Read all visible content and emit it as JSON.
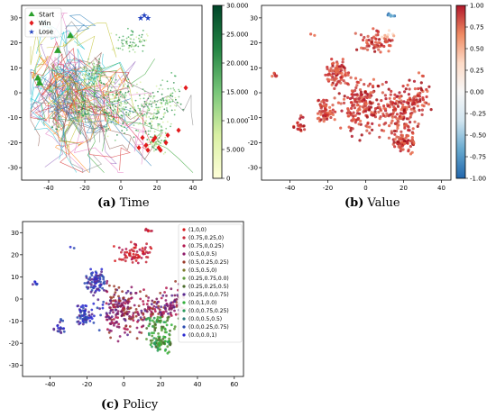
{
  "chart_data": [
    {
      "id": "a",
      "type": "scatter",
      "caption_tag": "(a)",
      "caption_text": "Time",
      "xlim": [
        -55,
        45
      ],
      "ylim": [
        -35,
        35
      ],
      "xticks": [
        "-40",
        "-20",
        "0",
        "20",
        "40"
      ],
      "yticks": [
        "-30",
        "-20",
        "-10",
        "0",
        "10",
        "20",
        "30"
      ],
      "legend": [
        {
          "label": "Start",
          "marker": "triangle",
          "color": "#2ca02c"
        },
        {
          "label": "Win",
          "marker": "diamond",
          "color": "#e31a1c"
        },
        {
          "label": "Lose",
          "marker": "star",
          "color": "#1f3fbf"
        }
      ],
      "colorbar": {
        "ticks": [
          "30.000",
          "25.000",
          "20.000",
          "15.000",
          "10.000",
          "5.000",
          "0"
        ],
        "range": [
          0,
          30
        ],
        "colors": [
          "#ffffd9",
          "#d9f0a3",
          "#78c679",
          "#238443",
          "#004529"
        ]
      },
      "start_points": [
        [
          -28,
          23
        ],
        [
          -35,
          17
        ],
        [
          -46,
          6
        ],
        [
          -45,
          4
        ]
      ],
      "win_points": [
        [
          10,
          -22
        ],
        [
          14,
          -21
        ],
        [
          18,
          -19
        ],
        [
          21,
          -22
        ],
        [
          25,
          -20
        ],
        [
          15,
          -23
        ],
        [
          19,
          -18
        ],
        [
          26,
          -17
        ],
        [
          32,
          -15
        ],
        [
          36,
          2
        ],
        [
          22,
          -23
        ],
        [
          12,
          -18
        ]
      ],
      "lose_points": [
        [
          11,
          30
        ],
        [
          13,
          31
        ],
        [
          15,
          30
        ]
      ]
    },
    {
      "id": "b",
      "type": "scatter",
      "caption_tag": "(b)",
      "caption_text": "Value",
      "xlim": [
        -55,
        45
      ],
      "ylim": [
        -35,
        35
      ],
      "xticks": [
        "-40",
        "-20",
        "0",
        "20",
        "40"
      ],
      "yticks": [
        "-30",
        "-20",
        "-10",
        "0",
        "10",
        "20",
        "30"
      ],
      "colorbar": {
        "ticks": [
          "1.00",
          "0.75",
          "0.50",
          "0.25",
          "0.00",
          "-0.25",
          "-0.50",
          "-0.75",
          "-1.00"
        ],
        "range": [
          -1,
          1
        ],
        "colors": [
          "#b2182b",
          "#ef8a62",
          "#fddbc7",
          "#f7f7f7",
          "#d1e5f0",
          "#67a9cf",
          "#2166ac"
        ]
      }
    },
    {
      "id": "c",
      "type": "scatter",
      "caption_tag": "(c)",
      "caption_text": "Policy",
      "xlim": [
        -55,
        65
      ],
      "ylim": [
        -35,
        35
      ],
      "xticks": [
        "-40",
        "-20",
        "0",
        "20",
        "40",
        "60"
      ],
      "yticks": [
        "-30",
        "-20",
        "-10",
        "0",
        "10",
        "20",
        "30"
      ],
      "legend": [
        {
          "label": "(1,0,0)",
          "color": "#d7191c"
        },
        {
          "label": "(0.75,0.25,0)",
          "color": "#c62a3a"
        },
        {
          "label": "(0.75,0,0.25)",
          "color": "#b2184f"
        },
        {
          "label": "(0.5,0,0.5)",
          "color": "#8e1b6a"
        },
        {
          "label": "(0.5,0.25,0.25)",
          "color": "#9a3a2a"
        },
        {
          "label": "(0.5,0.5,0)",
          "color": "#7a7a2a"
        },
        {
          "label": "(0.25,0.75,0.0)",
          "color": "#5b9a3a"
        },
        {
          "label": "(0.25,0.25,0.5)",
          "color": "#4a6a2a"
        },
        {
          "label": "(0.25,0.0,0.75)",
          "color": "#5a2a8e"
        },
        {
          "label": "(0.0,1,0.0)",
          "color": "#33b03a"
        },
        {
          "label": "(0.0,0.75,0.25)",
          "color": "#2a9a5a"
        },
        {
          "label": "(0.0,0.5,0.5)",
          "color": "#2a7a7a"
        },
        {
          "label": "(0.0,0.25,0.75)",
          "color": "#2a4ab0"
        },
        {
          "label": "(0.0,0.0,1)",
          "color": "#2a2ad0"
        }
      ]
    }
  ]
}
